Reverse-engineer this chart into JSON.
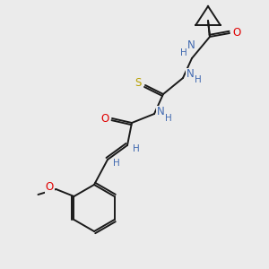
{
  "background_color": "#ebebeb",
  "bond_color": "#1a1a1a",
  "atom_colors": {
    "N": "#4169b0",
    "O": "#e00000",
    "S": "#b8a000",
    "C": "#1a1a1a",
    "H": "#4169b0"
  },
  "figsize": [
    3.0,
    3.0
  ],
  "dpi": 100
}
